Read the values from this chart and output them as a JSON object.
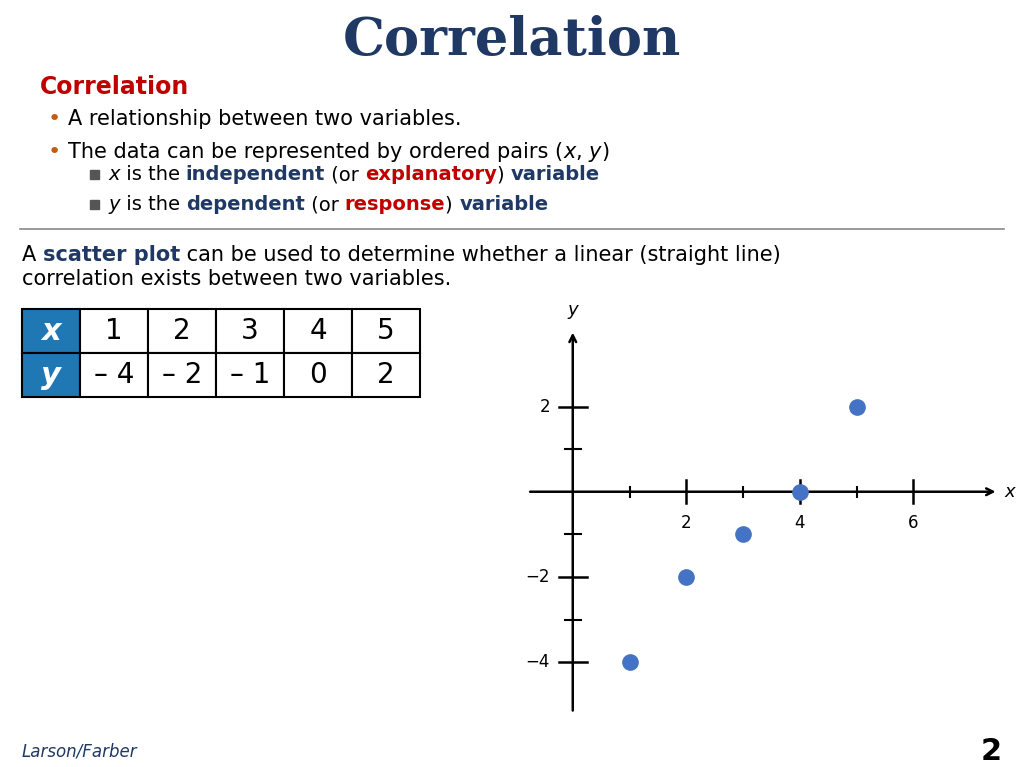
{
  "title": "Correlation",
  "title_color": "#1F3864",
  "title_fontsize": 36,
  "bg_color": "#FFFFFF",
  "section_heading": "Correlation",
  "section_heading_color": "#C00000",
  "text_color": "#000000",
  "red_color": "#C00000",
  "blue_bold_color": "#1F3864",
  "orange_color": "#C55A11",
  "table_header_bg": "#1F78B4",
  "table_header_text": "#FFFFFF",
  "dot_color": "#4472C4",
  "footer_color": "#1F3864",
  "footer_text": "Larson/Farber",
  "page_number": "2",
  "x_data": [
    1,
    2,
    3,
    4,
    5
  ],
  "y_data": [
    -4,
    -2,
    -1,
    0,
    2
  ]
}
